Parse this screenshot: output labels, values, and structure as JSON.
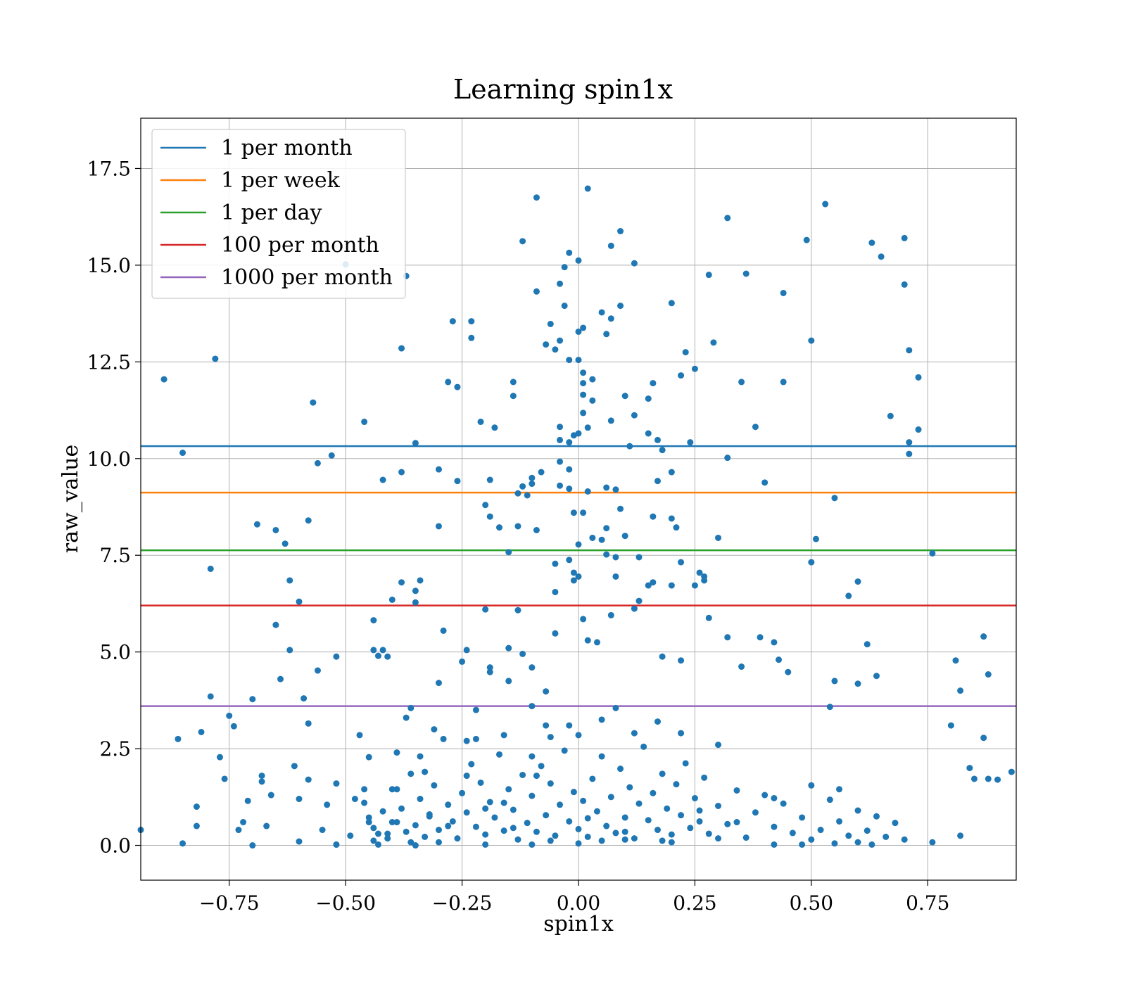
{
  "chart_data": {
    "type": "scatter",
    "title": "Learning spin1x",
    "xlabel": "spin1x",
    "ylabel": "raw_value",
    "xlim": [
      -0.94,
      0.94
    ],
    "ylim": [
      -0.9,
      18.8
    ],
    "xticks": [
      -0.75,
      -0.5,
      -0.25,
      0.0,
      0.25,
      0.5,
      0.75
    ],
    "xtick_labels": [
      "−0.75",
      "−0.50",
      "−0.25",
      "0.00",
      "0.25",
      "0.50",
      "0.75"
    ],
    "yticks": [
      0.0,
      2.5,
      5.0,
      7.5,
      10.0,
      12.5,
      15.0,
      17.5
    ],
    "ytick_labels": [
      "0.0",
      "2.5",
      "5.0",
      "7.5",
      "10.0",
      "12.5",
      "15.0",
      "17.5"
    ],
    "grid": true,
    "legend_position": "top-left",
    "point_color": "#1f77b4",
    "thresholds": [
      {
        "name": "1 per month",
        "value": 10.32,
        "color": "#1f77b4"
      },
      {
        "name": "1 per week",
        "value": 9.12,
        "color": "#ff7f0e"
      },
      {
        "name": "1 per day",
        "value": 7.63,
        "color": "#2ca02c"
      },
      {
        "name": "100 per month",
        "value": 6.2,
        "color": "#d62728"
      },
      {
        "name": "1000 per month",
        "value": 3.6,
        "color": "#9467bd"
      }
    ],
    "points": [
      [
        -0.94,
        0.4
      ],
      [
        -0.89,
        12.05
      ],
      [
        -0.85,
        10.15
      ],
      [
        -0.86,
        2.75
      ],
      [
        -0.85,
        0.05
      ],
      [
        -0.82,
        1.0
      ],
      [
        -0.82,
        0.5
      ],
      [
        -0.81,
        2.93
      ],
      [
        -0.78,
        12.58
      ],
      [
        -0.79,
        7.15
      ],
      [
        -0.79,
        3.85
      ],
      [
        -0.77,
        2.28
      ],
      [
        -0.76,
        1.72
      ],
      [
        -0.75,
        3.35
      ],
      [
        -0.74,
        3.08
      ],
      [
        -0.73,
        0.4
      ],
      [
        -0.72,
        0.6
      ],
      [
        -0.71,
        1.15
      ],
      [
        -0.7,
        3.78
      ],
      [
        -0.7,
        0.0
      ],
      [
        -0.68,
        1.8
      ],
      [
        -0.68,
        1.65
      ],
      [
        -0.69,
        8.3
      ],
      [
        -0.67,
        0.5
      ],
      [
        -0.66,
        1.3
      ],
      [
        -0.65,
        8.15
      ],
      [
        -0.65,
        5.7
      ],
      [
        -0.64,
        4.3
      ],
      [
        -0.63,
        7.8
      ],
      [
        -0.62,
        6.85
      ],
      [
        -0.62,
        5.05
      ],
      [
        -0.61,
        2.05
      ],
      [
        -0.6,
        6.3
      ],
      [
        -0.6,
        1.2
      ],
      [
        -0.6,
        0.1
      ],
      [
        -0.59,
        3.8
      ],
      [
        -0.58,
        3.15
      ],
      [
        -0.58,
        8.4
      ],
      [
        -0.58,
        1.7
      ],
      [
        -0.57,
        11.45
      ],
      [
        -0.56,
        9.88
      ],
      [
        -0.56,
        4.52
      ],
      [
        -0.55,
        0.4
      ],
      [
        -0.54,
        1.05
      ],
      [
        -0.53,
        10.08
      ],
      [
        -0.52,
        4.88
      ],
      [
        -0.52,
        1.6
      ],
      [
        -0.52,
        0.02
      ],
      [
        -0.5,
        15.02
      ],
      [
        -0.49,
        0.25
      ],
      [
        -0.48,
        1.2
      ],
      [
        -0.47,
        2.85
      ],
      [
        -0.46,
        10.95
      ],
      [
        -0.46,
        1.45
      ],
      [
        -0.45,
        2.28
      ],
      [
        -0.45,
        0.6
      ],
      [
        -0.44,
        5.82
      ],
      [
        -0.44,
        5.05
      ],
      [
        -0.43,
        4.9
      ],
      [
        -0.42,
        5.05
      ],
      [
        -0.42,
        9.45
      ],
      [
        -0.41,
        4.88
      ],
      [
        -0.41,
        0.3
      ],
      [
        -0.4,
        6.35
      ],
      [
        -0.4,
        0.6
      ],
      [
        -0.39,
        2.4
      ],
      [
        -0.39,
        1.45
      ],
      [
        -0.38,
        12.85
      ],
      [
        -0.37,
        14.72
      ],
      [
        -0.38,
        9.65
      ],
      [
        -0.38,
        6.8
      ],
      [
        -0.37,
        3.3
      ],
      [
        -0.36,
        3.55
      ],
      [
        -0.35,
        10.4
      ],
      [
        -0.35,
        6.58
      ],
      [
        -0.35,
        6.28
      ],
      [
        -0.34,
        6.85
      ],
      [
        -0.35,
        0.0
      ],
      [
        -0.34,
        2.3
      ],
      [
        -0.33,
        1.9
      ],
      [
        -0.32,
        0.8
      ],
      [
        -0.31,
        3.0
      ],
      [
        -0.3,
        9.72
      ],
      [
        -0.3,
        8.25
      ],
      [
        -0.3,
        4.2
      ],
      [
        -0.29,
        5.55
      ],
      [
        -0.28,
        11.98
      ],
      [
        -0.27,
        13.55
      ],
      [
        -0.26,
        11.85
      ],
      [
        -0.26,
        9.42
      ],
      [
        -0.25,
        4.75
      ],
      [
        -0.24,
        2.7
      ],
      [
        -0.24,
        5.05
      ],
      [
        -0.23,
        13.55
      ],
      [
        -0.23,
        13.12
      ],
      [
        -0.22,
        3.5
      ],
      [
        -0.22,
        2.75
      ],
      [
        -0.21,
        10.95
      ],
      [
        -0.2,
        8.8
      ],
      [
        -0.2,
        6.1
      ],
      [
        -0.19,
        4.6
      ],
      [
        -0.19,
        4.48
      ],
      [
        -0.19,
        9.45
      ],
      [
        -0.19,
        8.5
      ],
      [
        -0.18,
        10.8
      ],
      [
        -0.17,
        8.22
      ],
      [
        -0.16,
        1.1
      ],
      [
        -0.16,
        2.85
      ],
      [
        -0.15,
        5.1
      ],
      [
        -0.15,
        4.25
      ],
      [
        -0.15,
        7.58
      ],
      [
        -0.14,
        11.98
      ],
      [
        -0.14,
        11.62
      ],
      [
        -0.13,
        9.1
      ],
      [
        -0.13,
        8.25
      ],
      [
        -0.13,
        6.08
      ],
      [
        -0.12,
        4.95
      ],
      [
        -0.12,
        15.62
      ],
      [
        -0.12,
        9.28
      ],
      [
        -0.11,
        9.05
      ],
      [
        -0.1,
        4.6
      ],
      [
        -0.1,
        3.6
      ],
      [
        -0.1,
        9.35
      ],
      [
        -0.1,
        9.5
      ],
      [
        -0.09,
        16.75
      ],
      [
        -0.09,
        14.32
      ],
      [
        -0.09,
        8.15
      ],
      [
        -0.09,
        1.8
      ],
      [
        -0.08,
        9.65
      ],
      [
        -0.07,
        12.95
      ],
      [
        -0.07,
        3.98
      ],
      [
        -0.07,
        3.1
      ],
      [
        -0.06,
        13.48
      ],
      [
        -0.05,
        12.82
      ],
      [
        -0.05,
        7.28
      ],
      [
        -0.05,
        6.55
      ],
      [
        -0.05,
        5.48
      ],
      [
        -0.04,
        13.05
      ],
      [
        -0.04,
        14.52
      ],
      [
        -0.04,
        10.82
      ],
      [
        -0.04,
        10.48
      ],
      [
        -0.04,
        9.92
      ],
      [
        -0.04,
        9.3
      ],
      [
        -0.03,
        14.95
      ],
      [
        -0.03,
        13.95
      ],
      [
        -0.02,
        15.32
      ],
      [
        -0.02,
        12.55
      ],
      [
        -0.02,
        10.42
      ],
      [
        -0.02,
        9.72
      ],
      [
        -0.02,
        9.22
      ],
      [
        -0.02,
        7.38
      ],
      [
        -0.01,
        10.6
      ],
      [
        -0.01,
        8.6
      ],
      [
        -0.01,
        7.05
      ],
      [
        -0.01,
        6.85
      ],
      [
        0.0,
        15.12
      ],
      [
        0.0,
        13.28
      ],
      [
        0.0,
        12.55
      ],
      [
        0.0,
        10.65
      ],
      [
        0.0,
        7.78
      ],
      [
        0.0,
        6.95
      ],
      [
        0.01,
        13.38
      ],
      [
        0.01,
        12.22
      ],
      [
        0.01,
        11.95
      ],
      [
        0.01,
        11.65
      ],
      [
        0.01,
        11.18
      ],
      [
        0.01,
        8.6
      ],
      [
        0.01,
        5.85
      ],
      [
        0.02,
        16.98
      ],
      [
        0.02,
        10.8
      ],
      [
        0.02,
        9.15
      ],
      [
        0.02,
        5.3
      ],
      [
        0.03,
        12.05
      ],
      [
        0.03,
        11.5
      ],
      [
        0.03,
        7.95
      ],
      [
        0.04,
        5.25
      ],
      [
        0.05,
        13.78
      ],
      [
        0.05,
        7.9
      ],
      [
        0.06,
        13.22
      ],
      [
        0.06,
        8.2
      ],
      [
        0.06,
        7.52
      ],
      [
        0.06,
        9.25
      ],
      [
        0.07,
        15.5
      ],
      [
        0.07,
        13.62
      ],
      [
        0.07,
        10.98
      ],
      [
        0.07,
        5.95
      ],
      [
        0.08,
        6.95
      ],
      [
        0.08,
        9.2
      ],
      [
        0.08,
        7.45
      ],
      [
        0.09,
        15.88
      ],
      [
        0.09,
        13.95
      ],
      [
        0.09,
        8.7
      ],
      [
        0.1,
        11.62
      ],
      [
        0.1,
        8.0
      ],
      [
        0.11,
        10.32
      ],
      [
        0.12,
        15.05
      ],
      [
        0.12,
        11.12
      ],
      [
        0.12,
        6.12
      ],
      [
        0.13,
        6.32
      ],
      [
        0.13,
        7.45
      ],
      [
        0.15,
        11.55
      ],
      [
        0.15,
        10.65
      ],
      [
        0.15,
        6.72
      ],
      [
        0.16,
        11.95
      ],
      [
        0.16,
        8.5
      ],
      [
        0.16,
        6.8
      ],
      [
        0.17,
        9.42
      ],
      [
        0.17,
        10.48
      ],
      [
        0.18,
        10.22
      ],
      [
        0.18,
        4.88
      ],
      [
        0.2,
        14.02
      ],
      [
        0.2,
        9.65
      ],
      [
        0.2,
        8.45
      ],
      [
        0.2,
        6.72
      ],
      [
        0.21,
        8.22
      ],
      [
        0.22,
        7.32
      ],
      [
        0.22,
        4.78
      ],
      [
        0.22,
        12.15
      ],
      [
        0.23,
        12.75
      ],
      [
        0.24,
        10.42
      ],
      [
        0.25,
        12.32
      ],
      [
        0.25,
        6.72
      ],
      [
        0.26,
        7.05
      ],
      [
        0.27,
        6.95
      ],
      [
        0.27,
        6.85
      ],
      [
        0.28,
        14.75
      ],
      [
        0.28,
        5.88
      ],
      [
        0.29,
        13.0
      ],
      [
        0.3,
        7.95
      ],
      [
        0.32,
        16.22
      ],
      [
        0.32,
        10.02
      ],
      [
        0.32,
        5.38
      ],
      [
        0.35,
        11.98
      ],
      [
        0.36,
        14.78
      ],
      [
        0.35,
        4.62
      ],
      [
        0.38,
        10.82
      ],
      [
        0.39,
        5.38
      ],
      [
        0.4,
        9.38
      ],
      [
        0.42,
        5.25
      ],
      [
        0.43,
        4.8
      ],
      [
        0.44,
        14.28
      ],
      [
        0.44,
        11.98
      ],
      [
        0.45,
        4.48
      ],
      [
        0.49,
        15.65
      ],
      [
        0.5,
        13.05
      ],
      [
        0.5,
        7.32
      ],
      [
        0.51,
        7.92
      ],
      [
        0.53,
        16.58
      ],
      [
        0.54,
        3.58
      ],
      [
        0.55,
        4.25
      ],
      [
        0.55,
        8.98
      ],
      [
        0.58,
        6.45
      ],
      [
        0.6,
        6.82
      ],
      [
        0.6,
        4.18
      ],
      [
        0.62,
        5.2
      ],
      [
        0.63,
        15.58
      ],
      [
        0.64,
        4.38
      ],
      [
        0.65,
        15.22
      ],
      [
        0.67,
        11.1
      ],
      [
        0.7,
        15.7
      ],
      [
        0.7,
        14.5
      ],
      [
        0.71,
        12.8
      ],
      [
        0.71,
        10.42
      ],
      [
        0.71,
        10.12
      ],
      [
        0.73,
        12.1
      ],
      [
        0.73,
        10.75
      ],
      [
        0.76,
        7.55
      ],
      [
        0.8,
        3.1
      ],
      [
        0.81,
        4.78
      ],
      [
        0.82,
        4.0
      ],
      [
        0.84,
        2.0
      ],
      [
        0.85,
        1.72
      ],
      [
        0.87,
        5.4
      ],
      [
        0.87,
        2.78
      ],
      [
        0.88,
        4.42
      ],
      [
        0.88,
        1.72
      ],
      [
        0.9,
        1.7
      ],
      [
        0.93,
        1.9
      ],
      [
        -0.52,
        0.02
      ],
      [
        -0.43,
        0.02
      ],
      [
        -0.3,
        0.08
      ],
      [
        -0.2,
        0.02
      ],
      [
        -0.1,
        0.02
      ],
      [
        0.0,
        0.05
      ],
      [
        0.05,
        0.12
      ],
      [
        0.1,
        0.15
      ],
      [
        0.2,
        0.08
      ],
      [
        0.3,
        0.18
      ],
      [
        0.42,
        0.02
      ],
      [
        0.48,
        0.02
      ],
      [
        0.55,
        0.05
      ],
      [
        0.6,
        0.08
      ],
      [
        0.63,
        0.02
      ],
      [
        0.7,
        0.15
      ],
      [
        0.76,
        0.08
      ],
      [
        0.82,
        0.25
      ]
    ],
    "cluster_points": [
      [
        -0.46,
        1.1
      ],
      [
        -0.45,
        0.72
      ],
      [
        -0.44,
        0.45
      ],
      [
        -0.43,
        0.3
      ],
      [
        -0.42,
        0.88
      ],
      [
        -0.41,
        0.18
      ],
      [
        -0.4,
        1.45
      ],
      [
        -0.39,
        0.6
      ],
      [
        -0.38,
        0.95
      ],
      [
        -0.37,
        0.35
      ],
      [
        -0.36,
        1.85
      ],
      [
        -0.35,
        0.52
      ],
      [
        -0.34,
        1.2
      ],
      [
        -0.33,
        0.22
      ],
      [
        -0.32,
        0.75
      ],
      [
        -0.31,
        1.55
      ],
      [
        -0.3,
        0.4
      ],
      [
        -0.29,
        2.75
      ],
      [
        -0.28,
        1.05
      ],
      [
        -0.27,
        0.62
      ],
      [
        -0.26,
        0.18
      ],
      [
        -0.25,
        1.35
      ],
      [
        -0.24,
        0.85
      ],
      [
        -0.23,
        2.1
      ],
      [
        -0.22,
        0.48
      ],
      [
        -0.21,
        1.62
      ],
      [
        -0.2,
        0.28
      ],
      [
        -0.19,
        1.12
      ],
      [
        -0.18,
        0.72
      ],
      [
        -0.17,
        2.35
      ],
      [
        -0.16,
        0.38
      ],
      [
        -0.15,
        1.45
      ],
      [
        -0.14,
        0.92
      ],
      [
        -0.13,
        0.15
      ],
      [
        -0.12,
        1.82
      ],
      [
        -0.11,
        0.58
      ],
      [
        -0.1,
        1.28
      ],
      [
        -0.09,
        0.35
      ],
      [
        -0.08,
        2.05
      ],
      [
        -0.07,
        0.78
      ],
      [
        -0.06,
        1.6
      ],
      [
        -0.05,
        0.25
      ],
      [
        -0.04,
        1.05
      ],
      [
        -0.03,
        2.45
      ],
      [
        -0.02,
        0.62
      ],
      [
        -0.01,
        1.38
      ],
      [
        0.0,
        0.42
      ],
      [
        0.0,
        2.85
      ],
      [
        0.01,
        1.15
      ],
      [
        0.02,
        0.22
      ],
      [
        0.03,
        1.72
      ],
      [
        0.04,
        0.88
      ],
      [
        0.05,
        2.3
      ],
      [
        0.06,
        0.5
      ],
      [
        0.07,
        1.25
      ],
      [
        0.08,
        0.32
      ],
      [
        0.09,
        1.98
      ],
      [
        0.1,
        0.72
      ],
      [
        0.11,
        1.5
      ],
      [
        0.12,
        0.18
      ],
      [
        0.13,
        1.08
      ],
      [
        0.14,
        2.55
      ],
      [
        0.15,
        0.65
      ],
      [
        0.16,
        1.35
      ],
      [
        0.17,
        0.4
      ],
      [
        0.18,
        1.85
      ],
      [
        0.19,
        0.95
      ],
      [
        0.2,
        0.28
      ],
      [
        0.21,
        1.58
      ],
      [
        0.22,
        0.78
      ],
      [
        0.23,
        2.12
      ],
      [
        0.24,
        0.45
      ],
      [
        0.25,
        1.22
      ],
      [
        0.26,
        0.62
      ],
      [
        0.27,
        1.75
      ],
      [
        0.28,
        0.3
      ],
      [
        0.3,
        1.02
      ],
      [
        0.32,
        0.55
      ],
      [
        0.34,
        1.42
      ],
      [
        0.36,
        0.2
      ],
      [
        0.38,
        0.85
      ],
      [
        0.4,
        1.3
      ],
      [
        0.42,
        0.48
      ],
      [
        0.44,
        1.08
      ],
      [
        0.46,
        0.32
      ],
      [
        0.48,
        0.72
      ],
      [
        0.5,
        1.55
      ],
      [
        0.52,
        0.4
      ],
      [
        0.54,
        1.18
      ],
      [
        0.56,
        0.62
      ],
      [
        0.58,
        0.25
      ],
      [
        0.6,
        0.9
      ],
      [
        0.62,
        0.38
      ],
      [
        0.64,
        0.75
      ],
      [
        0.66,
        0.22
      ],
      [
        0.68,
        0.58
      ],
      [
        -0.44,
        0.12
      ],
      [
        -0.36,
        0.08
      ],
      [
        -0.28,
        0.5
      ],
      [
        -0.2,
        0.95
      ],
      [
        -0.14,
        0.45
      ],
      [
        -0.06,
        0.12
      ],
      [
        0.02,
        0.7
      ],
      [
        0.1,
        0.35
      ],
      [
        0.18,
        0.12
      ],
      [
        0.26,
        0.9
      ],
      [
        0.34,
        0.6
      ],
      [
        0.42,
        1.22
      ],
      [
        0.5,
        0.15
      ],
      [
        0.56,
        1.45
      ],
      [
        -0.24,
        1.8
      ],
      [
        -0.1,
        2.3
      ],
      [
        0.05,
        3.25
      ],
      [
        0.12,
        2.9
      ],
      [
        -0.02,
        3.1
      ],
      [
        0.08,
        3.55
      ],
      [
        0.17,
        3.2
      ],
      [
        0.22,
        2.9
      ],
      [
        -0.06,
        2.8
      ],
      [
        0.3,
        2.6
      ]
    ]
  }
}
